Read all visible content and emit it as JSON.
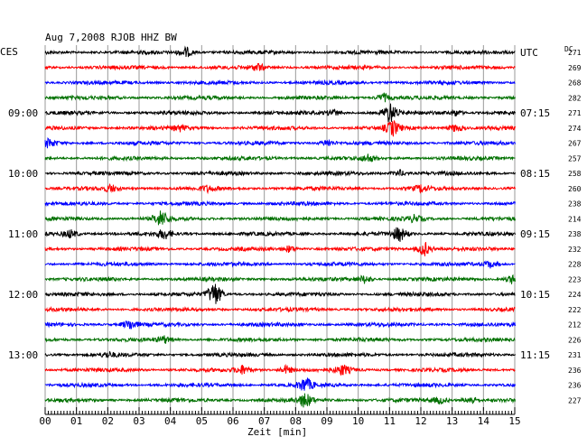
{
  "chart_data": {
    "type": "line",
    "title": "Aug 7,2008   RJOB HHZ BW",
    "left_tz": "CES",
    "right_tz": "UTC",
    "dc_label": "DC",
    "xlabel": "Zeit [min]",
    "x_ticks": [
      "00",
      "01",
      "02",
      "03",
      "04",
      "05",
      "06",
      "07",
      "08",
      "09",
      "10",
      "11",
      "12",
      "13",
      "14",
      "15"
    ],
    "xlim": [
      0,
      15
    ],
    "colors": [
      "#000000",
      "#ff0000",
      "#0000ff",
      "#007000"
    ],
    "left_hour_labels": [
      {
        "row": 4,
        "text": "09:00"
      },
      {
        "row": 8,
        "text": "10:00"
      },
      {
        "row": 12,
        "text": "11:00"
      },
      {
        "row": 16,
        "text": "12:00"
      },
      {
        "row": 20,
        "text": "13:00"
      }
    ],
    "right_hour_labels": [
      {
        "row": 0,
        "text": "UTC"
      },
      {
        "row": 4,
        "text": "07:15"
      },
      {
        "row": 8,
        "text": "08:15"
      },
      {
        "row": 12,
        "text": "09:15"
      },
      {
        "row": 16,
        "text": "10:15"
      },
      {
        "row": 20,
        "text": "11:15"
      }
    ],
    "dc_values": [
      271,
      269,
      268,
      282,
      271,
      274,
      267,
      257,
      258,
      260,
      238,
      214,
      238,
      232,
      228,
      223,
      224,
      222,
      212,
      226,
      231,
      236,
      236,
      227
    ],
    "events": [
      {
        "row": 0,
        "min": 4.5,
        "amp": 6
      },
      {
        "row": 1,
        "min": 6.8,
        "amp": 4
      },
      {
        "row": 3,
        "min": 10.8,
        "amp": 5
      },
      {
        "row": 4,
        "min": 9.2,
        "amp": 4
      },
      {
        "row": 4,
        "min": 11.0,
        "amp": 12
      },
      {
        "row": 4,
        "min": 13.1,
        "amp": 4
      },
      {
        "row": 5,
        "min": 4.3,
        "amp": 3
      },
      {
        "row": 5,
        "min": 11.1,
        "amp": 9
      },
      {
        "row": 5,
        "min": 13.1,
        "amp": 5
      },
      {
        "row": 6,
        "min": 0.1,
        "amp": 5
      },
      {
        "row": 6,
        "min": 9.0,
        "amp": 4
      },
      {
        "row": 7,
        "min": 10.3,
        "amp": 4
      },
      {
        "row": 8,
        "min": 11.3,
        "amp": 4
      },
      {
        "row": 9,
        "min": 2.1,
        "amp": 4
      },
      {
        "row": 9,
        "min": 5.2,
        "amp": 3
      },
      {
        "row": 9,
        "min": 12.0,
        "amp": 4
      },
      {
        "row": 11,
        "min": 3.7,
        "amp": 10
      },
      {
        "row": 11,
        "min": 11.8,
        "amp": 4
      },
      {
        "row": 12,
        "min": 0.8,
        "amp": 5
      },
      {
        "row": 12,
        "min": 3.8,
        "amp": 6
      },
      {
        "row": 12,
        "min": 11.3,
        "amp": 9
      },
      {
        "row": 13,
        "min": 7.8,
        "amp": 4
      },
      {
        "row": 13,
        "min": 12.1,
        "amp": 9
      },
      {
        "row": 14,
        "min": 14.2,
        "amp": 4
      },
      {
        "row": 15,
        "min": 10.2,
        "amp": 5
      },
      {
        "row": 15,
        "min": 14.9,
        "amp": 5
      },
      {
        "row": 16,
        "min": 5.4,
        "amp": 15
      },
      {
        "row": 18,
        "min": 2.7,
        "amp": 6
      },
      {
        "row": 19,
        "min": 3.8,
        "amp": 4
      },
      {
        "row": 20,
        "min": 2.0,
        "amp": 3
      },
      {
        "row": 21,
        "min": 6.3,
        "amp": 5
      },
      {
        "row": 21,
        "min": 7.7,
        "amp": 5
      },
      {
        "row": 21,
        "min": 9.5,
        "amp": 6
      },
      {
        "row": 22,
        "min": 8.3,
        "amp": 9
      },
      {
        "row": 23,
        "min": 8.3,
        "amp": 9
      },
      {
        "row": 23,
        "min": 13.6,
        "amp": 5
      },
      {
        "row": 23,
        "min": 12.6,
        "amp": 4
      }
    ]
  }
}
